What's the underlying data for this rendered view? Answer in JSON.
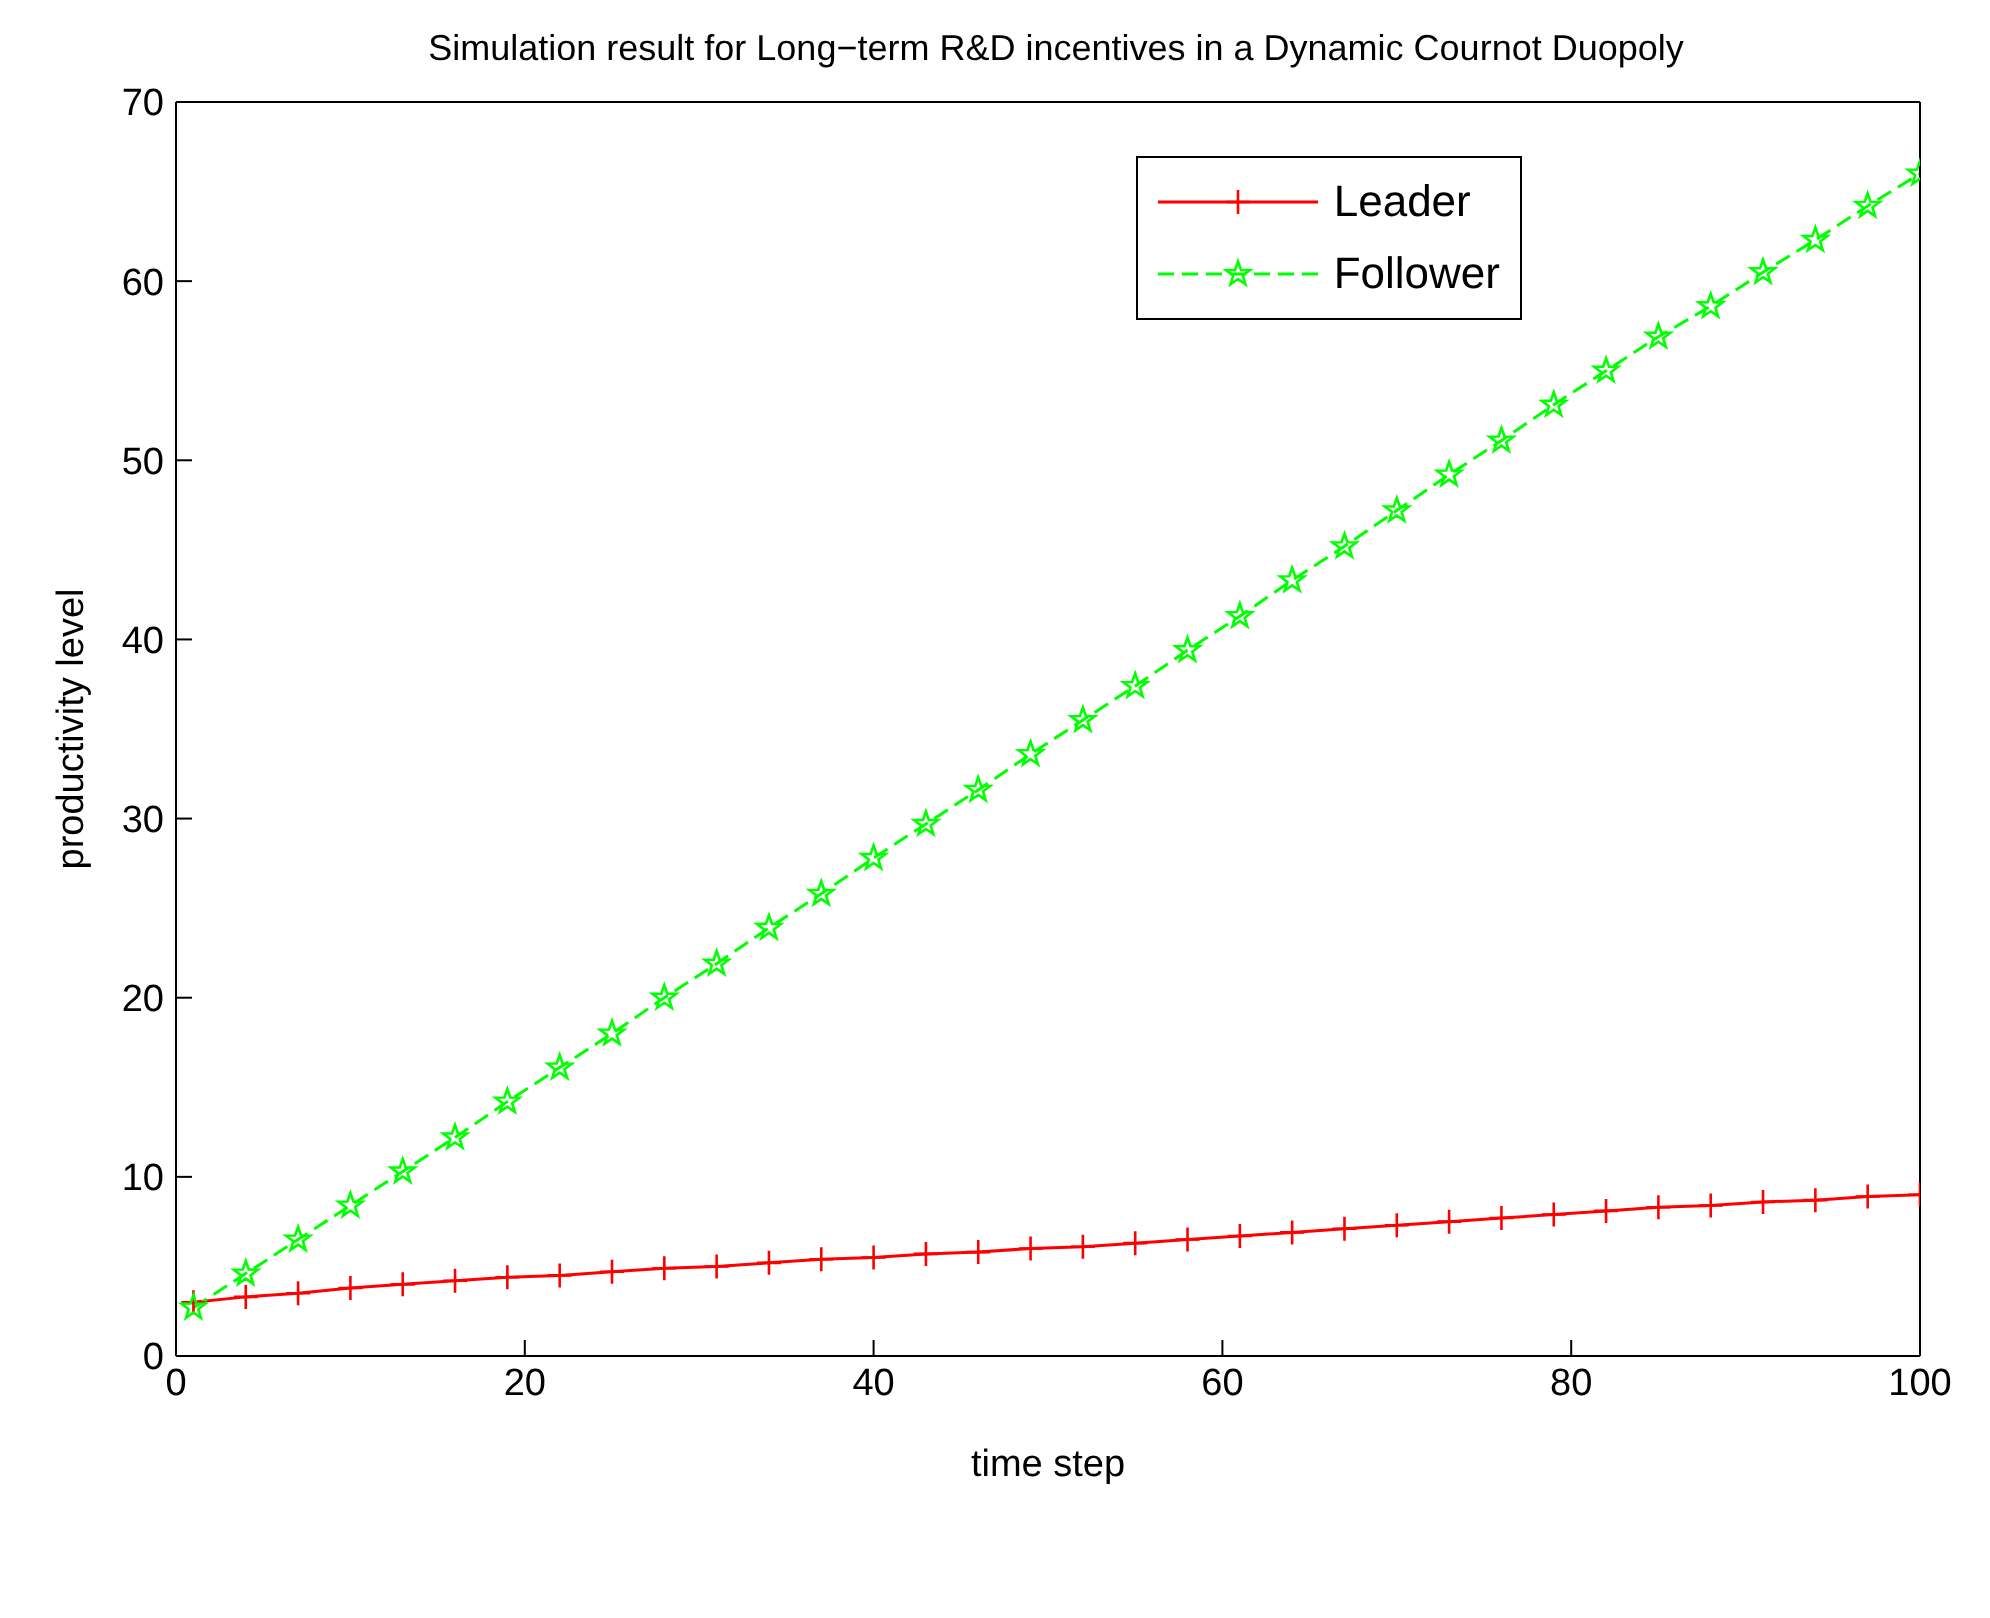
{
  "chart_data": {
    "type": "line",
    "title": "Simulation result for Long−term R&D incentives in a Dynamic Cournot Duopoly",
    "xlabel": "time step",
    "ylabel": "productivity level",
    "x": [
      1,
      4,
      7,
      10,
      13,
      16,
      19,
      22,
      25,
      28,
      31,
      34,
      37,
      40,
      43,
      46,
      49,
      52,
      55,
      58,
      61,
      64,
      67,
      70,
      73,
      76,
      79,
      82,
      85,
      88,
      91,
      94,
      97,
      100
    ],
    "series": [
      {
        "name": "Leader",
        "color": "#ff0000",
        "marker": "cross",
        "line_style": "solid",
        "values": [
          3.0,
          3.3,
          3.5,
          3.8,
          4.0,
          4.2,
          4.4,
          4.5,
          4.7,
          4.9,
          5.0,
          5.2,
          5.4,
          5.5,
          5.7,
          5.8,
          6.0,
          6.1,
          6.3,
          6.5,
          6.7,
          6.9,
          7.1,
          7.3,
          7.5,
          7.7,
          7.9,
          8.1,
          8.3,
          8.4,
          8.6,
          8.7,
          8.9,
          9.0
        ]
      },
      {
        "name": "Follower",
        "color": "#00ff00",
        "marker": "star",
        "line_style": "dashed",
        "values": [
          2.7,
          4.6,
          6.5,
          8.4,
          10.3,
          12.2,
          14.2,
          16.1,
          18.0,
          20.0,
          21.9,
          23.9,
          25.8,
          27.8,
          29.7,
          31.6,
          33.6,
          35.5,
          37.4,
          39.4,
          41.3,
          43.3,
          45.2,
          47.2,
          49.2,
          51.1,
          53.1,
          55.0,
          56.9,
          58.6,
          60.5,
          62.3,
          64.2,
          66.0
        ]
      }
    ],
    "xlim": [
      0,
      100
    ],
    "xticks": [
      0,
      20,
      40,
      60,
      80,
      100
    ],
    "ylim": [
      0,
      70
    ],
    "yticks": [
      0,
      10,
      20,
      30,
      40,
      50,
      60,
      70
    ],
    "grid": false,
    "legend": "top right"
  }
}
